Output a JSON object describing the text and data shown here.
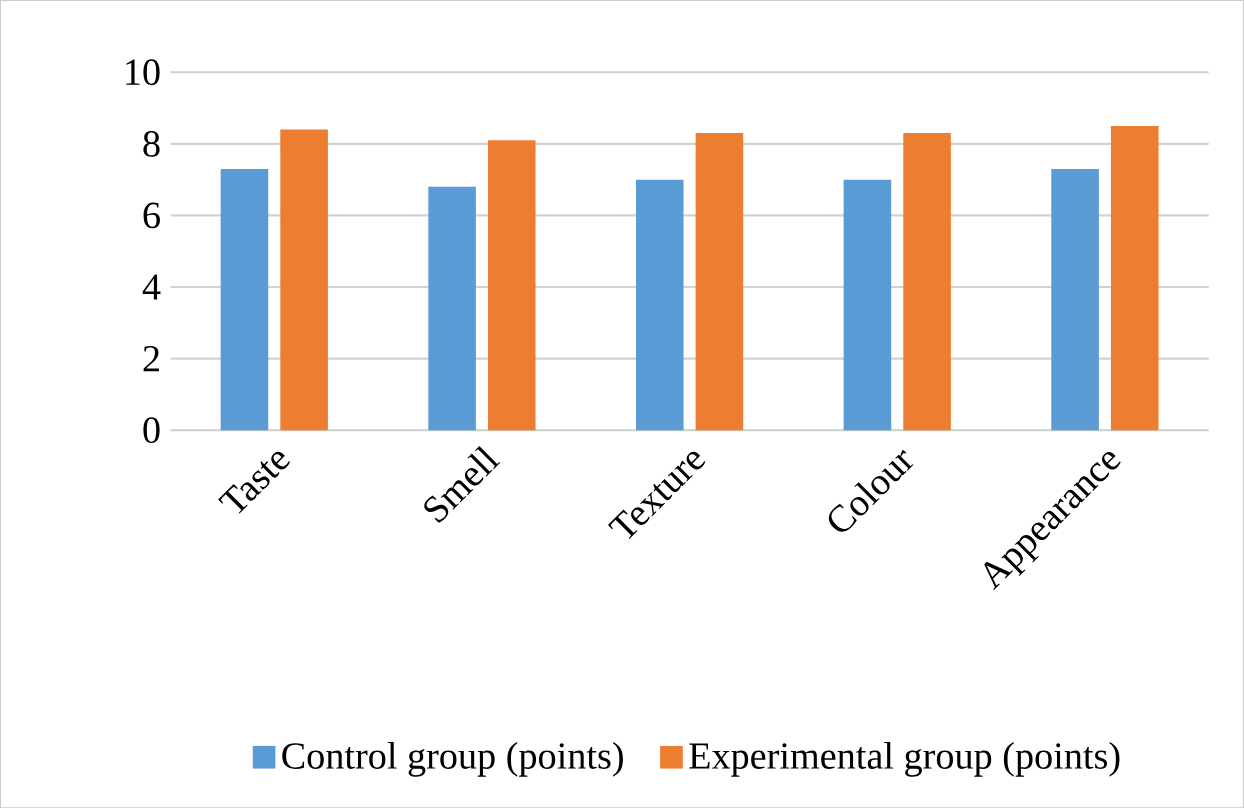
{
  "chart_data": {
    "type": "bar",
    "categories": [
      "Taste",
      "Smell",
      "Texture",
      "Colour",
      "Appearance"
    ],
    "series": [
      {
        "name": "Control group (points)",
        "color": "#5b9bd5",
        "values": [
          7.3,
          6.8,
          7.0,
          7.0,
          7.3
        ]
      },
      {
        "name": "Experimental group (points)",
        "color": "#ed7d31",
        "values": [
          8.4,
          8.1,
          8.3,
          8.3,
          8.5
        ]
      }
    ],
    "ylim": [
      0,
      10
    ],
    "yticks": [
      0,
      2,
      4,
      6,
      8,
      10
    ],
    "grid": "y",
    "legend": "bottom"
  }
}
